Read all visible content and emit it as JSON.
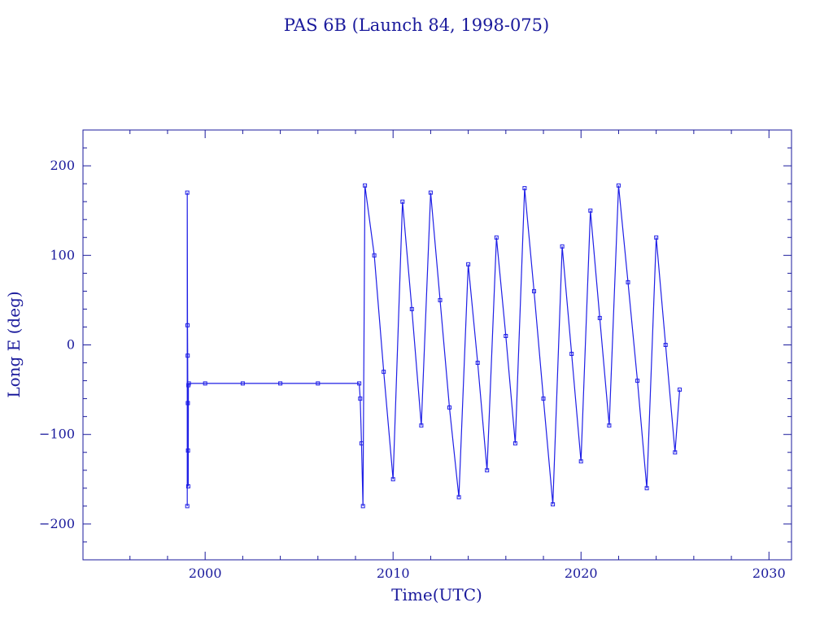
{
  "chart_data": {
    "type": "line",
    "title": "PAS 6B (Launch 84, 1998-075)",
    "xlabel": "Time(UTC)",
    "ylabel": "Long E (deg)",
    "xlim": [
      1993.5,
      2031.2
    ],
    "ylim": [
      -240,
      240
    ],
    "x_ticks": [
      2000,
      2010,
      2020,
      2030
    ],
    "x_tick_labels": [
      "2000",
      "2010",
      "2020",
      "2030"
    ],
    "y_ticks": [
      -200,
      -100,
      0,
      100,
      200
    ],
    "y_tick_labels": [
      "−200",
      "−100",
      "0",
      "100",
      "200"
    ],
    "grid": false,
    "legend": "none",
    "colors": {
      "series": "#1f1fe6",
      "frame": "#1a1a9c",
      "text": "#1a1a9c"
    },
    "series": [
      {
        "points": [
          [
            1999.05,
            -180
          ],
          [
            1999.05,
            170
          ],
          [
            1999.06,
            22
          ],
          [
            1999.07,
            -12
          ],
          [
            1999.08,
            -65
          ],
          [
            1999.09,
            -118
          ],
          [
            1999.1,
            -158
          ],
          [
            1999.11,
            -45
          ],
          [
            1999.13,
            -43
          ],
          [
            2000.0,
            -43
          ],
          [
            2002.0,
            -43
          ],
          [
            2004.0,
            -43
          ],
          [
            2006.0,
            -43
          ],
          [
            2008.2,
            -43
          ],
          [
            2008.25,
            -60
          ],
          [
            2008.32,
            -110
          ],
          [
            2008.4,
            -180
          ],
          [
            2008.5,
            178
          ],
          [
            2009.0,
            100
          ],
          [
            2009.5,
            -30
          ],
          [
            2010.0,
            -150
          ],
          [
            2010.5,
            160
          ],
          [
            2011.0,
            40
          ],
          [
            2011.5,
            -90
          ],
          [
            2012.0,
            170
          ],
          [
            2012.5,
            50
          ],
          [
            2013.0,
            -70
          ],
          [
            2013.5,
            -170
          ],
          [
            2014.0,
            90
          ],
          [
            2014.5,
            -20
          ],
          [
            2015.0,
            -140
          ],
          [
            2015.5,
            120
          ],
          [
            2016.0,
            10
          ],
          [
            2016.5,
            -110
          ],
          [
            2017.0,
            175
          ],
          [
            2017.5,
            60
          ],
          [
            2018.0,
            -60
          ],
          [
            2018.5,
            -178
          ],
          [
            2019.0,
            110
          ],
          [
            2019.5,
            -10
          ],
          [
            2020.0,
            -130
          ],
          [
            2020.5,
            150
          ],
          [
            2021.0,
            30
          ],
          [
            2021.5,
            -90
          ],
          [
            2022.0,
            178
          ],
          [
            2022.5,
            70
          ],
          [
            2023.0,
            -40
          ],
          [
            2023.5,
            -160
          ],
          [
            2024.0,
            120
          ],
          [
            2024.5,
            0
          ],
          [
            2025.0,
            -120
          ],
          [
            2025.25,
            -50
          ]
        ]
      }
    ]
  }
}
